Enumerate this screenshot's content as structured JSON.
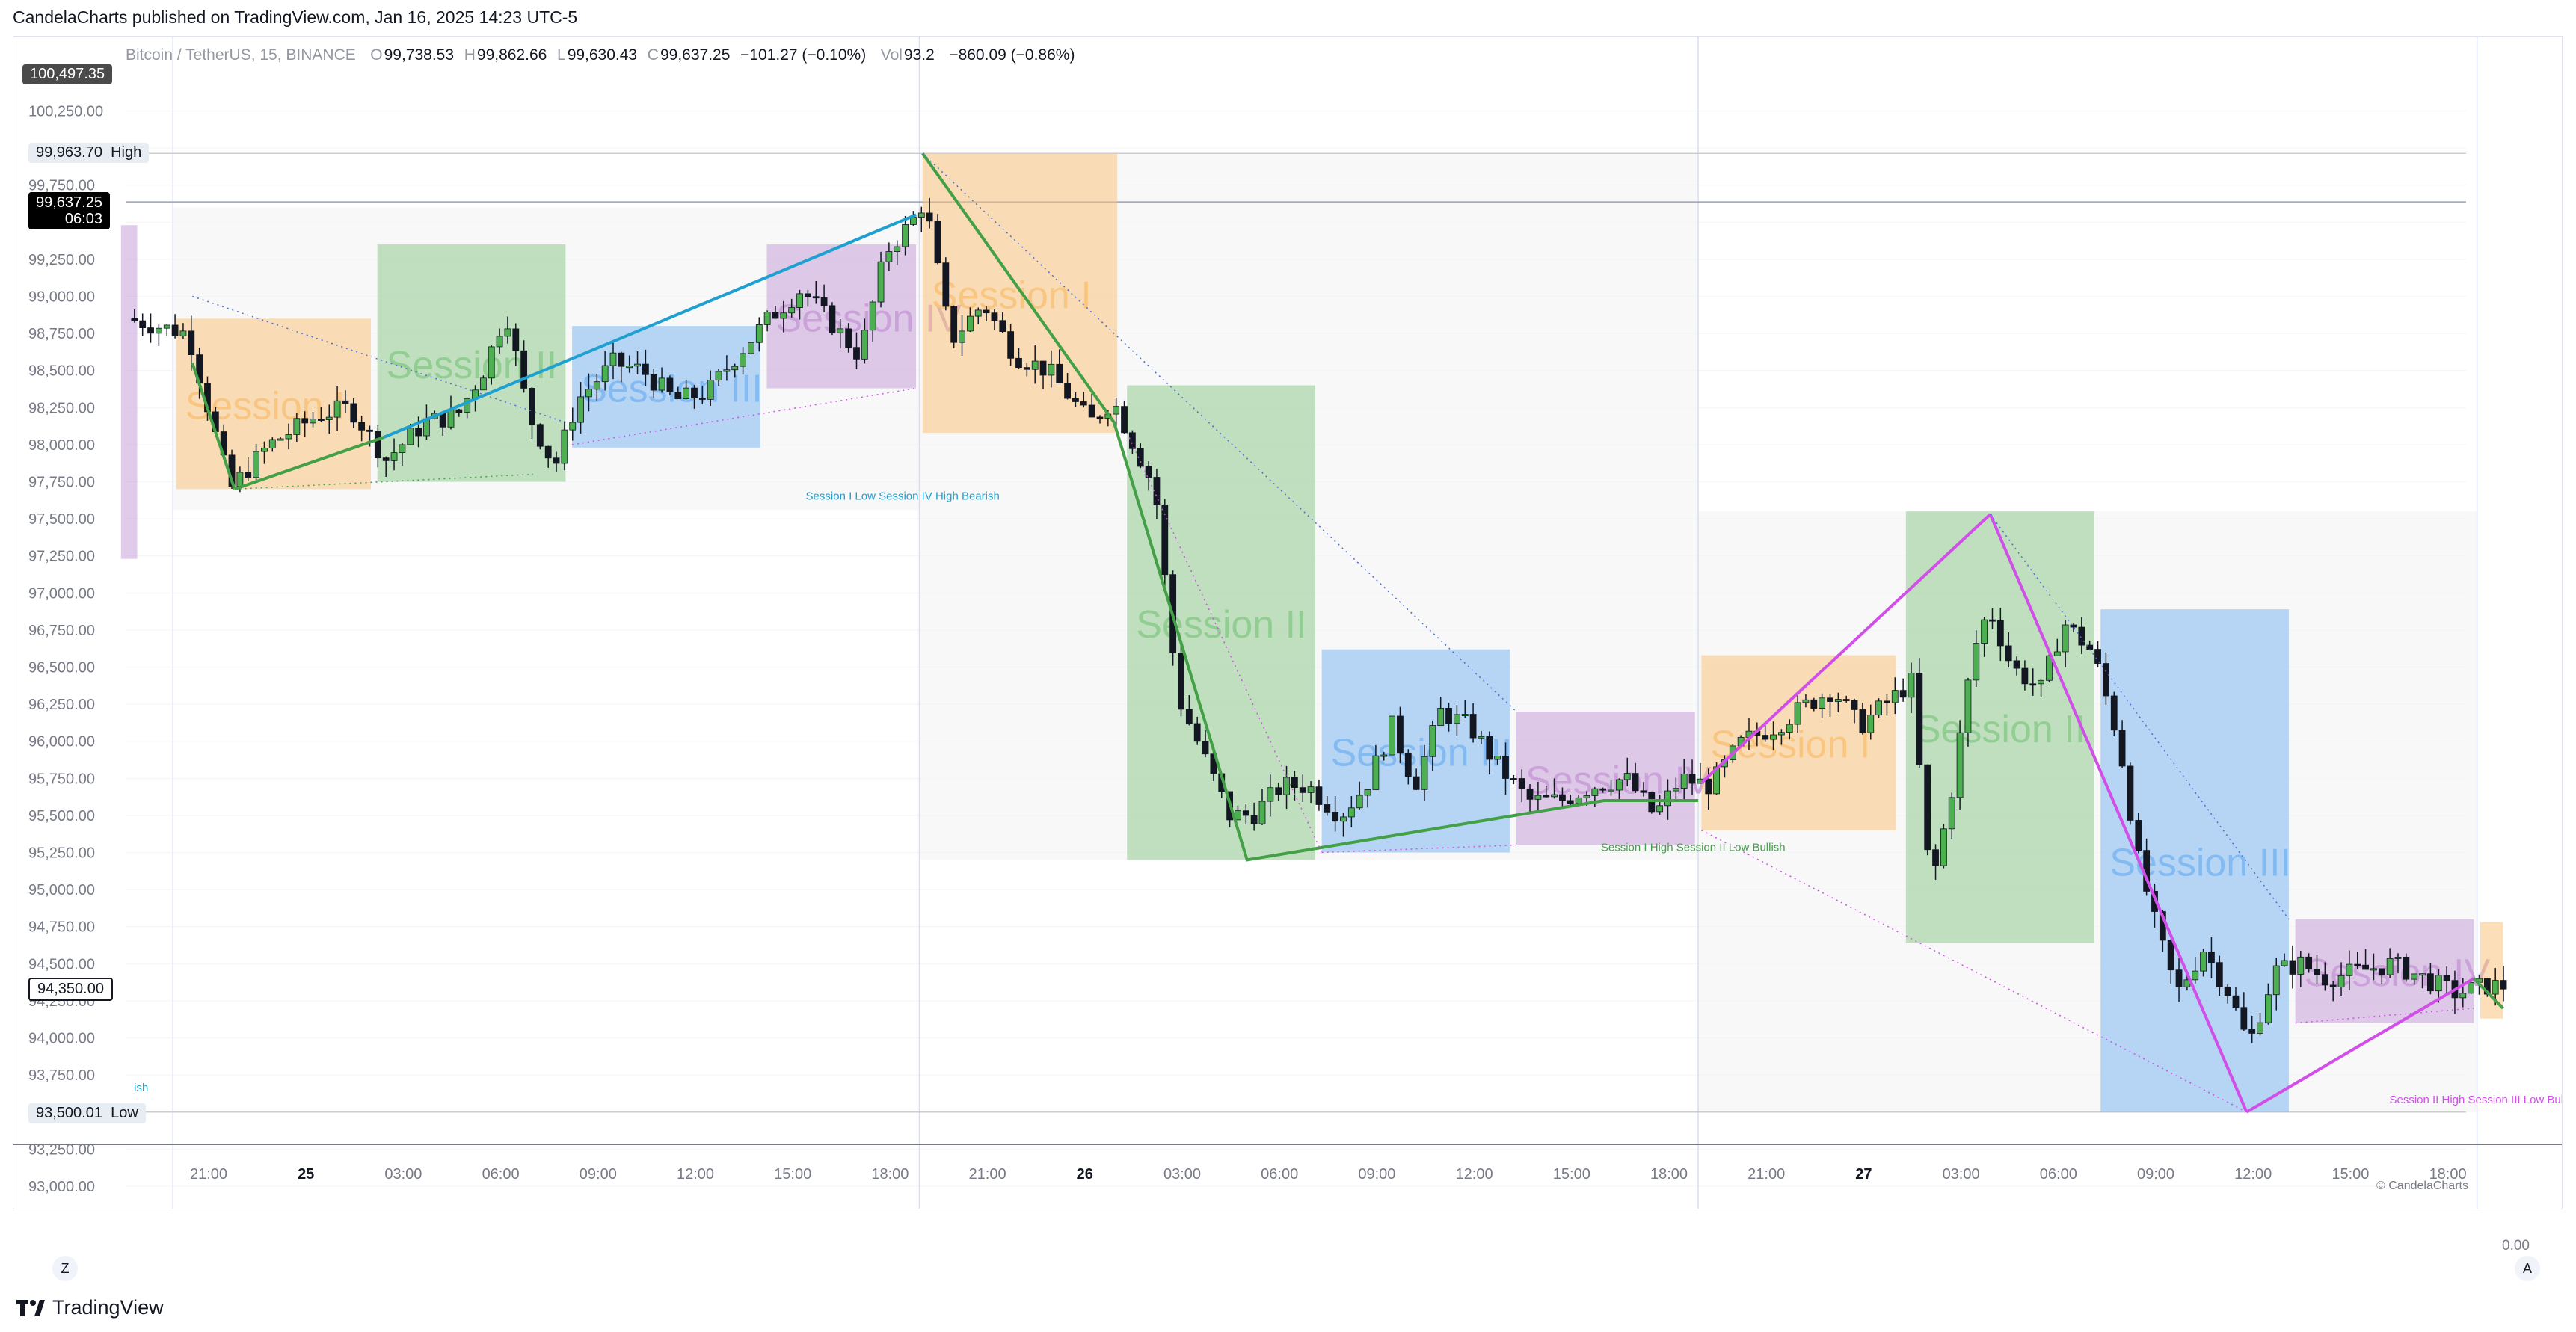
{
  "publish_line": "CandelaCharts published on TradingView.com, Jan 16, 2025 14:23 UTC-5",
  "header": {
    "symbol": "Bitcoin / TetherUS, 15, BINANCE",
    "o_label": "O",
    "o": "99,738.53",
    "h_label": "H",
    "h": "99,862.66",
    "l_label": "L",
    "l": "99,630.43",
    "c_label": "C",
    "c": "99,637.25",
    "change": "−101.27 (−0.10%)",
    "vol_label": "Vol",
    "vol": "93.2",
    "vol_change": "−860.09 (−0.86%)"
  },
  "price_tags": {
    "top": "100,497.35",
    "high": "99,963.70",
    "high_label": "High",
    "current": "99,637.25",
    "current_time": "06:03",
    "ref": "94,350.00",
    "low": "93,500.01",
    "low_label": "Low"
  },
  "footer": {
    "brand": "TradingView",
    "watermark": "© CandelaCharts",
    "zero": "0.00",
    "z_btn": "Z",
    "a_btn": "A"
  },
  "colors": {
    "session1": "#f9c47e",
    "session2": "#8fcb8f",
    "session3": "#7fb8f0",
    "session4": "#c8a0d8",
    "up": "#4caf50",
    "down": "#131722",
    "green_line": "#43a047",
    "blue_line": "#1ea0d0",
    "magenta_line": "#d14fe8"
  },
  "chart_data": {
    "type": "candlestick",
    "ylim": [
      92800,
      100550
    ],
    "y_ticks": [
      "100,250.00",
      "100,000.00",
      "99,750.00",
      "99,500.00",
      "99,250.00",
      "99,000.00",
      "98,750.00",
      "98,500.00",
      "98,250.00",
      "98,000.00",
      "97,750.00",
      "97,500.00",
      "97,250.00",
      "97,000.00",
      "96,750.00",
      "96,500.00",
      "96,250.00",
      "96,000.00",
      "95,750.00",
      "95,500.00",
      "95,250.00",
      "95,000.00",
      "94,750.00",
      "94,500.00",
      "94,250.00",
      "94,000.00",
      "93,750.00",
      "93,500.00",
      "93,250.00",
      "93,000.00"
    ],
    "x_ticks": [
      {
        "t": 20.0,
        "label": "21:00",
        "bold": false
      },
      {
        "t": 23.0,
        "label": "25",
        "bold": true
      },
      {
        "t": 26.0,
        "label": "03:00",
        "bold": false
      },
      {
        "t": 29.0,
        "label": "06:00",
        "bold": false
      },
      {
        "t": 32.0,
        "label": "09:00",
        "bold": false
      },
      {
        "t": 35.0,
        "label": "12:00",
        "bold": false
      },
      {
        "t": 38.0,
        "label": "15:00",
        "bold": false
      },
      {
        "t": 41.0,
        "label": "18:00",
        "bold": false
      },
      {
        "t": 44.0,
        "label": "21:00",
        "bold": false
      },
      {
        "t": 47.0,
        "label": "26",
        "bold": true
      },
      {
        "t": 50.0,
        "label": "03:00",
        "bold": false
      },
      {
        "t": 53.0,
        "label": "06:00",
        "bold": false
      },
      {
        "t": 56.0,
        "label": "09:00",
        "bold": false
      },
      {
        "t": 59.0,
        "label": "12:00",
        "bold": false
      },
      {
        "t": 62.0,
        "label": "15:00",
        "bold": false
      },
      {
        "t": 65.0,
        "label": "18:00",
        "bold": false
      },
      {
        "t": 68.0,
        "label": "21:00",
        "bold": false
      },
      {
        "t": 71.0,
        "label": "27",
        "bold": true
      },
      {
        "t": 74.0,
        "label": "03:00",
        "bold": false
      },
      {
        "t": 77.0,
        "label": "06:00",
        "bold": false
      },
      {
        "t": 80.0,
        "label": "09:00",
        "bold": false
      },
      {
        "t": 83.0,
        "label": "12:00",
        "bold": false
      },
      {
        "t": 86.0,
        "label": "15:00",
        "bold": false
      },
      {
        "t": 89.0,
        "label": "18:00",
        "bold": false
      }
    ],
    "day_separators": [
      18.9,
      41.9,
      65.9,
      89.9
    ],
    "high_price": 99963.7,
    "low_price": 93500.01,
    "current_price": 99637.25,
    "sessions": [
      {
        "name": "Session I",
        "type": 1,
        "t0": 19.0,
        "t1": 25.0,
        "top": 98850,
        "bottom": 97700
      },
      {
        "name": "Session II",
        "type": 2,
        "t0": 25.2,
        "t1": 31.0,
        "top": 99350,
        "bottom": 97750
      },
      {
        "name": "Session III",
        "type": 3,
        "t0": 31.2,
        "t1": 37.0,
        "top": 98800,
        "bottom": 97980
      },
      {
        "name": "Session IV",
        "type": 4,
        "t0": 37.2,
        "t1": 41.8,
        "top": 99350,
        "bottom": 98380
      },
      {
        "name": "Session I",
        "type": 1,
        "t0": 42.0,
        "t1": 48.0,
        "top": 99960,
        "bottom": 98080
      },
      {
        "name": "Session II",
        "type": 2,
        "t0": 48.3,
        "t1": 54.1,
        "top": 98400,
        "bottom": 95200
      },
      {
        "name": "Session III",
        "type": 3,
        "t0": 54.3,
        "t1": 60.1,
        "top": 96620,
        "bottom": 95250
      },
      {
        "name": "Session IV",
        "type": 4,
        "t0": 60.3,
        "t1": 65.8,
        "top": 96200,
        "bottom": 95300
      },
      {
        "name": "Session I",
        "type": 1,
        "t0": 66.0,
        "t1": 72.0,
        "top": 96580,
        "bottom": 95400
      },
      {
        "name": "Session II",
        "type": 2,
        "t0": 72.3,
        "t1": 78.1,
        "top": 97550,
        "bottom": 94640
      },
      {
        "name": "Session III",
        "type": 3,
        "t0": 78.3,
        "t1": 84.1,
        "top": 96890,
        "bottom": 93500
      },
      {
        "name": "Session IV",
        "type": 4,
        "t0": 84.3,
        "t1": 89.8,
        "top": 94800,
        "bottom": 94100
      },
      {
        "name": "",
        "type": 1,
        "t0": 90.0,
        "t1": 90.7,
        "top": 94780,
        "bottom": 94130
      },
      {
        "name": "",
        "type": 4,
        "t0": 17.3,
        "t1": 17.8,
        "top": 99480,
        "bottom": 97230
      }
    ],
    "zig_lines": [
      {
        "color": "green",
        "points": [
          [
            20.8,
            97700
          ],
          [
            25.4,
            98050
          ]
        ]
      },
      {
        "color": "green",
        "points": [
          [
            19.5,
            98550
          ],
          [
            20.8,
            97700
          ]
        ]
      },
      {
        "color": "blue",
        "points": [
          [
            25.4,
            98050
          ],
          [
            41.8,
            99550
          ]
        ]
      },
      {
        "color": "green",
        "points": [
          [
            42.0,
            99963.7
          ],
          [
            47.9,
            98150
          ],
          [
            52.0,
            95200
          ],
          [
            63.0,
            95600
          ],
          [
            65.9,
            95600
          ]
        ]
      },
      {
        "color": "magenta",
        "points": [
          [
            66.0,
            95720
          ],
          [
            74.9,
            97530
          ]
        ]
      },
      {
        "color": "magenta",
        "points": [
          [
            74.9,
            97530
          ],
          [
            82.8,
            93500
          ]
        ]
      },
      {
        "color": "magenta",
        "points": [
          [
            82.8,
            93500
          ],
          [
            89.8,
            94400
          ]
        ]
      },
      {
        "color": "green",
        "points": [
          [
            89.8,
            94400
          ],
          [
            90.7,
            94200
          ]
        ]
      }
    ],
    "annotations": [
      {
        "text": "Session I Low Session IV High Bearish",
        "t": 38.4,
        "y": 97630,
        "color": "blue"
      },
      {
        "text": "Session I High Session II Low Bullish",
        "t": 62.9,
        "y": 95260,
        "color": "green"
      },
      {
        "text": "Session II High Session III Low Bullish",
        "t": 87.2,
        "y": 93560,
        "color": "magenta"
      },
      {
        "text": "ish",
        "t": 17.7,
        "y": 93640,
        "color": "blue"
      }
    ],
    "anchors": [
      [
        17.6,
        98850
      ],
      [
        19.5,
        98750
      ],
      [
        20.8,
        97700
      ],
      [
        22.0,
        98000
      ],
      [
        23.5,
        98200
      ],
      [
        24.5,
        98250
      ],
      [
        25.6,
        97900
      ],
      [
        26.8,
        98150
      ],
      [
        27.8,
        98200
      ],
      [
        28.6,
        98500
      ],
      [
        29.3,
        98900
      ],
      [
        30.0,
        98200
      ],
      [
        30.8,
        97850
      ],
      [
        31.5,
        98300
      ],
      [
        32.6,
        98550
      ],
      [
        33.5,
        98500
      ],
      [
        34.5,
        98300
      ],
      [
        35.5,
        98350
      ],
      [
        36.4,
        98600
      ],
      [
        37.4,
        98850
      ],
      [
        38.4,
        99050
      ],
      [
        39.4,
        98800
      ],
      [
        40.2,
        98600
      ],
      [
        41.0,
        99300
      ],
      [
        41.8,
        99500
      ],
      [
        42.2,
        99650
      ],
      [
        43.0,
        98700
      ],
      [
        44.0,
        98950
      ],
      [
        45.0,
        98600
      ],
      [
        46.0,
        98500
      ],
      [
        47.3,
        98150
      ],
      [
        48.0,
        98300
      ],
      [
        49.3,
        97700
      ],
      [
        50.0,
        96300
      ],
      [
        50.8,
        95900
      ],
      [
        51.6,
        95500
      ],
      [
        52.3,
        95500
      ],
      [
        53.2,
        95700
      ],
      [
        54.0,
        95700
      ],
      [
        55.0,
        95500
      ],
      [
        55.8,
        95700
      ],
      [
        56.6,
        96100
      ],
      [
        57.3,
        95700
      ],
      [
        58.1,
        96200
      ],
      [
        59.0,
        96100
      ],
      [
        59.8,
        95850
      ],
      [
        60.8,
        95600
      ],
      [
        61.8,
        95600
      ],
      [
        62.8,
        95700
      ],
      [
        63.8,
        95750
      ],
      [
        64.7,
        95500
      ],
      [
        65.5,
        95750
      ],
      [
        66.4,
        95700
      ],
      [
        67.4,
        96000
      ],
      [
        68.4,
        96100
      ],
      [
        69.4,
        96250
      ],
      [
        70.2,
        96350
      ],
      [
        71.0,
        96100
      ],
      [
        71.8,
        96250
      ],
      [
        72.6,
        96400
      ],
      [
        73.2,
        95000
      ],
      [
        73.8,
        95600
      ],
      [
        74.5,
        96600
      ],
      [
        75.0,
        96900
      ],
      [
        75.7,
        96500
      ],
      [
        76.6,
        96350
      ],
      [
        77.3,
        96800
      ],
      [
        78.2,
        96600
      ],
      [
        79.0,
        96000
      ],
      [
        79.6,
        95200
      ],
      [
        80.2,
        94700
      ],
      [
        80.8,
        94300
      ],
      [
        81.6,
        94600
      ],
      [
        82.4,
        94300
      ],
      [
        83.0,
        93950
      ],
      [
        83.8,
        94450
      ],
      [
        84.6,
        94500
      ],
      [
        85.4,
        94400
      ],
      [
        86.4,
        94450
      ],
      [
        87.4,
        94500
      ],
      [
        88.4,
        94400
      ],
      [
        89.4,
        94300
      ],
      [
        90.3,
        94350
      ]
    ]
  }
}
